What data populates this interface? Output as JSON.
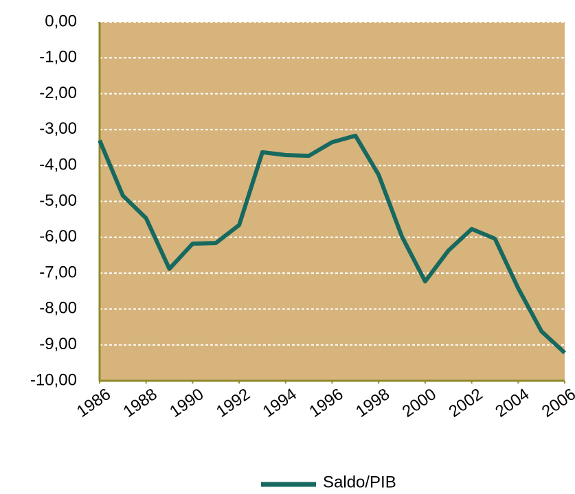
{
  "chart_data": {
    "type": "line",
    "x": [
      1986,
      1987,
      1988,
      1989,
      1990,
      1991,
      1992,
      1993,
      1994,
      1995,
      1996,
      1997,
      1998,
      1999,
      2000,
      2001,
      2002,
      2003,
      2004,
      2005,
      2006
    ],
    "series": [
      {
        "name": "Saldo/PIB",
        "color": "#17695f",
        "values": [
          -3.3,
          -4.84,
          -5.47,
          -6.88,
          -6.18,
          -6.16,
          -5.66,
          -3.63,
          -3.71,
          -3.73,
          -3.35,
          -3.17,
          -4.26,
          -5.98,
          -7.23,
          -6.37,
          -5.77,
          -6.04,
          -7.42,
          -8.62,
          -9.22
        ]
      }
    ],
    "xlim": [
      1986,
      2006
    ],
    "xticks": [
      1986,
      1988,
      1990,
      1992,
      1994,
      1996,
      1998,
      2000,
      2002,
      2004,
      2006
    ],
    "ylim": [
      -10,
      0
    ],
    "yticks": [
      {
        "value": 0,
        "label": "0,00"
      },
      {
        "value": -1,
        "label": "-1,00"
      },
      {
        "value": -2,
        "label": "-2,00"
      },
      {
        "value": -3,
        "label": "-3,00"
      },
      {
        "value": -4,
        "label": "-4,00"
      },
      {
        "value": -5,
        "label": "-5,00"
      },
      {
        "value": -6,
        "label": "-6,00"
      },
      {
        "value": -7,
        "label": "-7,00"
      },
      {
        "value": -8,
        "label": "-8,00"
      },
      {
        "value": -9,
        "label": "-9,00"
      },
      {
        "value": -10,
        "label": "-10,00"
      }
    ],
    "grid": true,
    "plot_background": "#d6b47c",
    "legend": "bottom"
  }
}
